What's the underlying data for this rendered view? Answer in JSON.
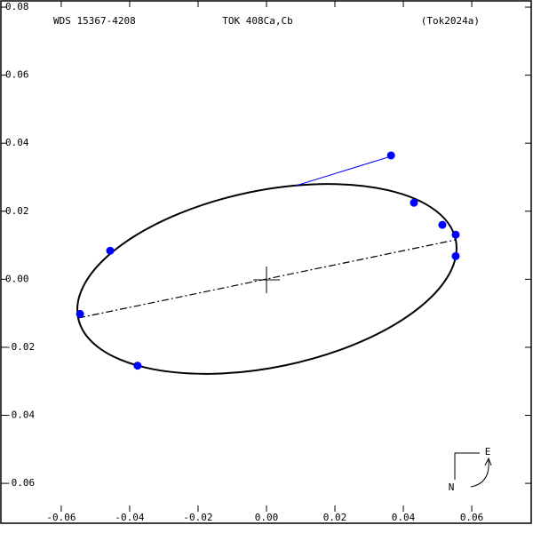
{
  "chart_data": {
    "type": "scatter",
    "title": "TOK 408Ca,Cb",
    "annotations": [
      "WDS 15367-4208",
      "(Tok2024a)"
    ],
    "compass": [
      "E",
      "N"
    ],
    "xlim": [
      -0.0779,
      0.0779
    ],
    "ylim": [
      -0.0746,
      0.0821
    ],
    "xticks": [
      -0.06,
      -0.04,
      -0.02,
      {
        "value": 0,
        "label": "0.00"
      },
      0.02,
      0.04,
      0.06
    ],
    "yticks": [
      -0.06,
      -0.04,
      -0.02,
      {
        "value": 0,
        "label": "0.00"
      },
      0.02,
      0.04,
      0.06,
      0.08
    ],
    "series": [
      {
        "color": "#0000ff",
        "x": [
          0.0364,
          0.0431,
          0.0514,
          0.0553,
          0.0553,
          -0.0457,
          -0.0545,
          -0.0377
        ],
        "values": [
          0.0364,
          0.0225,
          0.016,
          0.0131,
          0.0068,
          0.0084,
          -0.0102,
          -0.0254
        ]
      }
    ]
  }
}
